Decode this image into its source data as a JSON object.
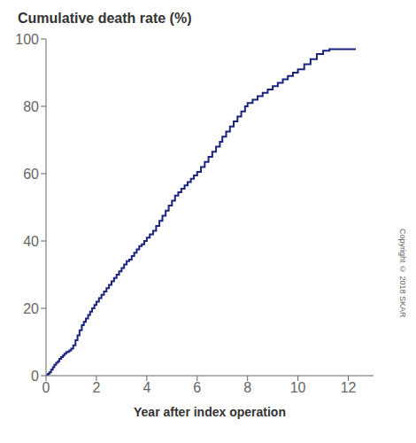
{
  "chart_data": {
    "type": "step",
    "title": "Cumulative death rate (%)",
    "x_label": "Year after index operation",
    "annotations": [
      "Copyright © 2018 SKAR"
    ],
    "color": "#1a237e",
    "grid": false,
    "xlim": [
      0,
      13
    ],
    "ylim": [
      0,
      100
    ],
    "xticks": [
      0,
      2,
      4,
      6,
      8,
      10,
      12
    ],
    "yticks": [
      0,
      20,
      40,
      60,
      80,
      100
    ],
    "x": [
      0.0,
      0.07,
      0.13,
      0.2,
      0.27,
      0.33,
      0.4,
      0.47,
      0.53,
      0.6,
      0.67,
      0.73,
      0.8,
      0.87,
      0.93,
      1.0,
      1.08,
      1.17,
      1.25,
      1.33,
      1.42,
      1.5,
      1.58,
      1.67,
      1.75,
      1.83,
      1.92,
      2.0,
      2.1,
      2.2,
      2.3,
      2.4,
      2.5,
      2.6,
      2.7,
      2.8,
      2.9,
      3.0,
      3.1,
      3.2,
      3.3,
      3.4,
      3.5,
      3.6,
      3.7,
      3.8,
      3.9,
      4.0,
      4.12,
      4.25,
      4.37,
      4.5,
      4.62,
      4.75,
      4.87,
      5.0,
      5.12,
      5.25,
      5.37,
      5.5,
      5.62,
      5.75,
      5.87,
      6.0,
      6.15,
      6.3,
      6.45,
      6.6,
      6.75,
      6.9,
      7.0,
      7.15,
      7.3,
      7.45,
      7.6,
      7.75,
      7.9,
      8.0,
      8.2,
      8.4,
      8.6,
      8.8,
      9.0,
      9.2,
      9.4,
      9.6,
      9.8,
      10.0,
      10.25,
      10.5,
      10.75,
      11.0,
      11.25,
      11.5,
      12.0,
      12.3
    ],
    "values": [
      0.0,
      0.5,
      1.0,
      1.8,
      2.5,
      3.2,
      3.8,
      4.3,
      5.0,
      5.5,
      6.0,
      6.5,
      7.0,
      7.2,
      7.5,
      8.0,
      9.0,
      10.5,
      12.0,
      13.5,
      15.0,
      16.0,
      17.0,
      18.0,
      19.0,
      20.0,
      21.0,
      22.0,
      23.0,
      24.0,
      25.0,
      26.0,
      27.0,
      28.0,
      29.0,
      30.0,
      31.0,
      32.0,
      33.0,
      34.0,
      34.5,
      35.5,
      36.5,
      37.5,
      38.5,
      39.0,
      40.0,
      41.0,
      42.0,
      43.0,
      44.5,
      46.0,
      47.5,
      49.0,
      50.5,
      52.0,
      53.5,
      54.5,
      55.5,
      56.5,
      57.5,
      58.5,
      59.5,
      60.5,
      62.0,
      63.5,
      65.0,
      66.5,
      68.0,
      69.5,
      71.0,
      72.5,
      74.0,
      75.5,
      77.0,
      78.5,
      80.0,
      81.0,
      82.0,
      83.0,
      84.0,
      85.0,
      86.0,
      87.0,
      88.0,
      89.0,
      90.0,
      91.0,
      92.5,
      94.0,
      95.5,
      96.5,
      97.0,
      97.0,
      97.0,
      97.0
    ]
  }
}
